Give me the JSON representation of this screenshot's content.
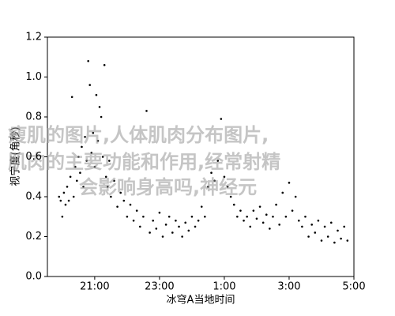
{
  "chart_data": {
    "type": "scatter",
    "xlabel": "冰穹A当地时间",
    "ylabel": "视宁度(角秒)",
    "color": "#000000",
    "xlim": [
      19.54,
      29
    ],
    "ylim": [
      0,
      1.2
    ],
    "xticks": [
      {
        "value": 21,
        "label": "21:00"
      },
      {
        "value": 23,
        "label": "23:00"
      },
      {
        "value": 25,
        "label": "1:00"
      },
      {
        "value": 27,
        "label": "3:00"
      },
      {
        "value": 29,
        "label": "5:00"
      }
    ],
    "yticks": [
      {
        "value": 0,
        "label": "0.0"
      },
      {
        "value": 0.2,
        "label": "0.2"
      },
      {
        "value": 0.4,
        "label": "0.4"
      },
      {
        "value": 0.6,
        "label": "0.6"
      },
      {
        "value": 0.8,
        "label": "0.8"
      },
      {
        "value": 1.0,
        "label": "1.0"
      },
      {
        "value": 1.2,
        "label": "1.2"
      }
    ],
    "x": [
      19.9,
      19.95,
      20.0,
      20.05,
      20.1,
      20.15,
      20.2,
      20.25,
      20.3,
      20.35,
      20.4,
      20.45,
      20.5,
      20.55,
      20.6,
      20.65,
      20.7,
      20.75,
      20.8,
      20.85,
      20.9,
      20.95,
      21.0,
      21.05,
      21.1,
      21.15,
      21.2,
      21.25,
      21.3,
      21.35,
      21.4,
      21.45,
      21.5,
      21.6,
      21.7,
      21.8,
      21.9,
      22.0,
      22.1,
      22.2,
      22.3,
      22.4,
      22.5,
      22.6,
      22.7,
      22.8,
      22.9,
      23.0,
      23.1,
      23.2,
      23.3,
      23.4,
      23.5,
      23.6,
      23.7,
      23.8,
      23.9,
      24.0,
      24.1,
      24.2,
      24.3,
      24.4,
      24.5,
      24.6,
      24.7,
      24.8,
      24.9,
      25.0,
      25.1,
      25.2,
      25.3,
      25.4,
      25.5,
      25.6,
      25.7,
      25.8,
      25.9,
      26.0,
      26.1,
      26.2,
      26.3,
      26.4,
      26.5,
      26.6,
      26.7,
      26.8,
      26.9,
      27.0,
      27.1,
      27.2,
      27.3,
      27.4,
      27.5,
      27.6,
      27.7,
      27.8,
      27.9,
      28.0,
      28.1,
      28.2,
      28.3,
      28.4,
      28.5,
      28.6,
      28.7,
      28.8
    ],
    "values": [
      0.4,
      0.38,
      0.3,
      0.42,
      0.36,
      0.45,
      0.38,
      0.5,
      0.9,
      0.4,
      0.55,
      0.48,
      0.6,
      0.52,
      0.65,
      0.45,
      0.7,
      0.58,
      1.08,
      0.96,
      0.62,
      0.72,
      0.55,
      0.91,
      0.68,
      0.85,
      0.8,
      0.6,
      1.06,
      0.5,
      0.45,
      0.58,
      0.4,
      0.48,
      0.35,
      0.42,
      0.38,
      0.3,
      0.36,
      0.28,
      0.33,
      0.25,
      0.3,
      0.83,
      0.22,
      0.28,
      0.24,
      0.32,
      0.2,
      0.26,
      0.3,
      0.22,
      0.28,
      0.25,
      0.2,
      0.27,
      0.23,
      0.3,
      0.25,
      0.28,
      0.35,
      0.3,
      0.45,
      0.52,
      0.48,
      0.58,
      0.79,
      0.5,
      0.45,
      0.4,
      0.36,
      0.3,
      0.33,
      0.28,
      0.3,
      0.25,
      0.33,
      0.29,
      0.35,
      0.27,
      0.31,
      0.24,
      0.3,
      0.36,
      0.26,
      0.42,
      0.3,
      0.47,
      0.33,
      0.4,
      0.28,
      0.25,
      0.3,
      0.2,
      0.26,
      0.22,
      0.28,
      0.18,
      0.25,
      0.2,
      0.27,
      0.17,
      0.23,
      0.19,
      0.25,
      0.18
    ]
  },
  "watermark": [
    "瘦肌的图片,人体肌肉分布图片,",
    "肌肉的主要功能和作用,经常射精",
    "会影响身高吗,神经元"
  ]
}
